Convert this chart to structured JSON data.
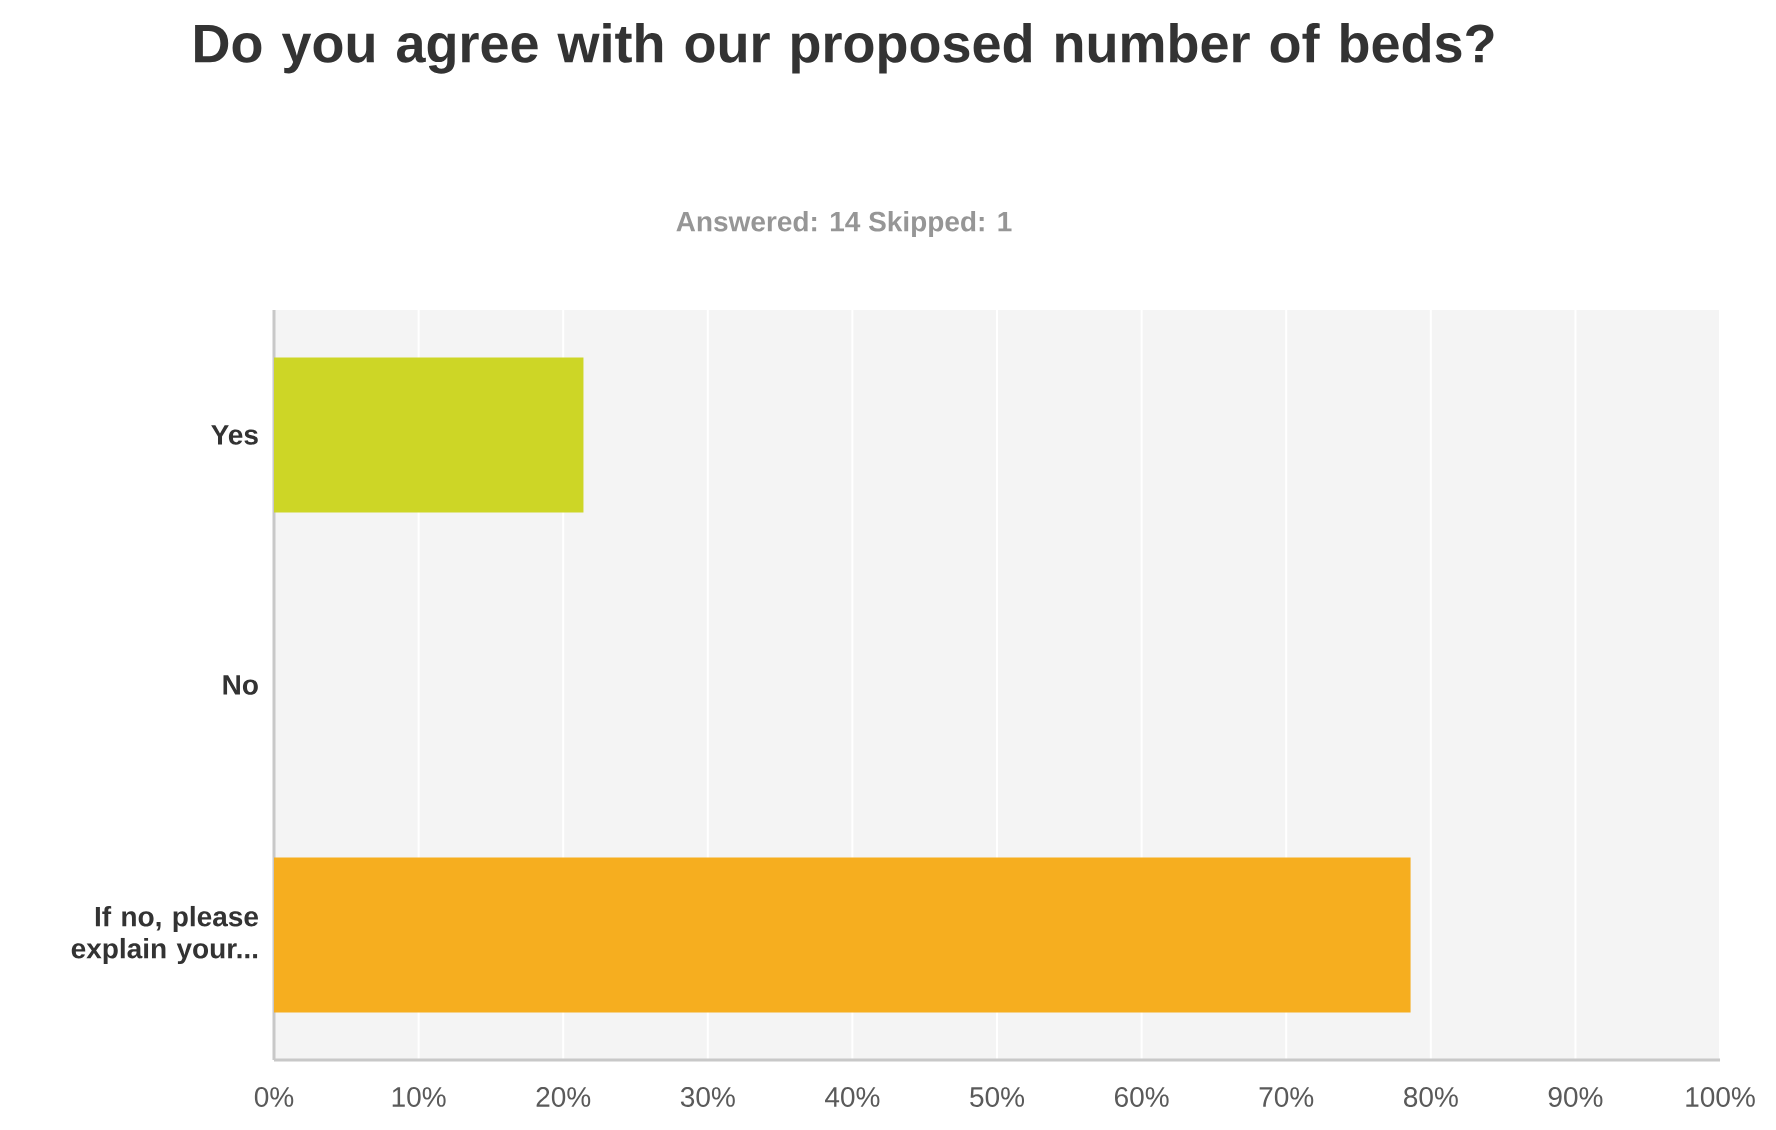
{
  "chart_data": {
    "type": "bar",
    "orientation": "horizontal",
    "title": "Do you agree with our proposed number of beds?",
    "subtitle": "Answered: 14    Skipped: 1",
    "categories": [
      "Yes",
      "No",
      "If no, please explain your..."
    ],
    "values": [
      21.4,
      0,
      78.6
    ],
    "colors": [
      "#cdd626",
      "#2dccd3",
      "#f6ae1f"
    ],
    "xlim": [
      0,
      100
    ],
    "xticks": [
      {
        "value": 0,
        "label": "0%"
      },
      {
        "value": 10,
        "label": "10%"
      },
      {
        "value": 20,
        "label": "20%"
      },
      {
        "value": 30,
        "label": "30%"
      },
      {
        "value": 40,
        "label": "40%"
      },
      {
        "value": 50,
        "label": "50%"
      },
      {
        "value": 60,
        "label": "60%"
      },
      {
        "value": 70,
        "label": "70%"
      },
      {
        "value": 80,
        "label": "80%"
      },
      {
        "value": 90,
        "label": "90%"
      },
      {
        "value": 100,
        "label": "100%"
      }
    ],
    "grid": "x"
  }
}
